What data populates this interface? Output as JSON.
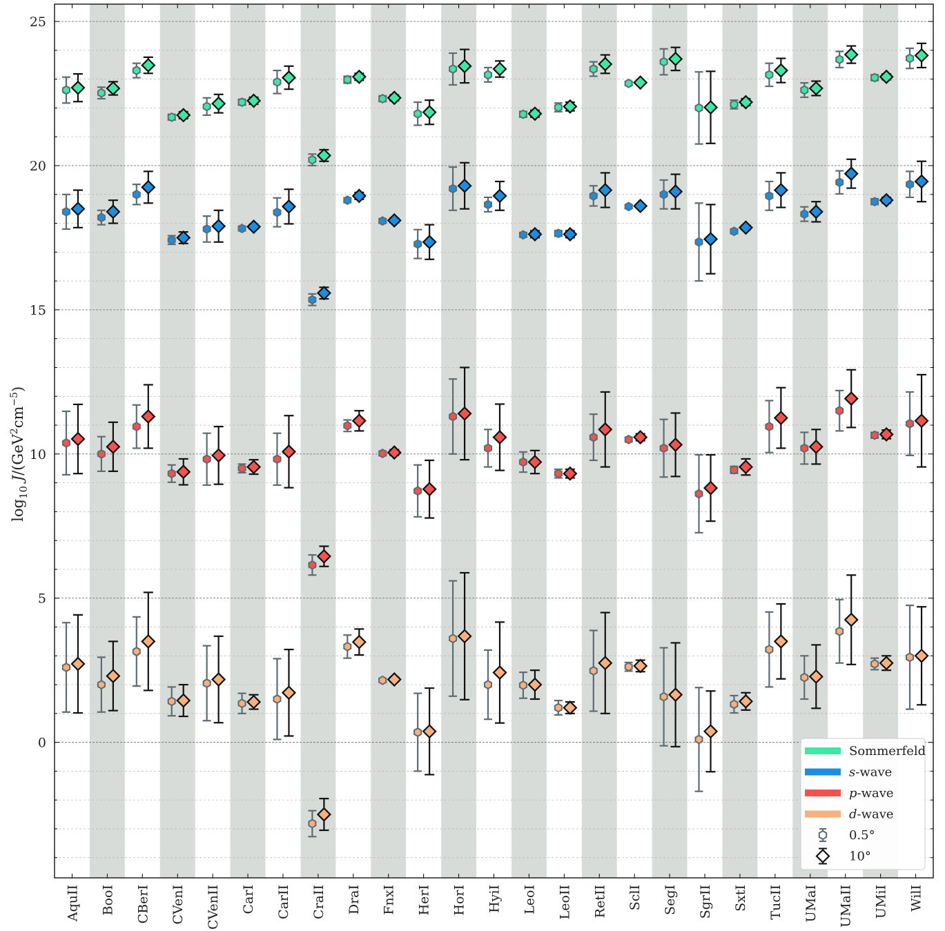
{
  "chart_data": {
    "type": "scatter",
    "ylabel": "log10 J/(GeV2cm−5)",
    "ylabel_parts": {
      "prefix": "log",
      "sub": "10",
      "var": "J",
      "mid": "/(GeV",
      "sup1": "2",
      "mid2": "cm",
      "sup2": "−5",
      "end": ")"
    },
    "ylim": [
      -4.7,
      25.6
    ],
    "yticks": [
      0,
      5,
      10,
      15,
      20,
      25
    ],
    "ytick_labels": [
      "0",
      "5",
      "10",
      "15",
      "20",
      "25"
    ],
    "grid": "horizontal dashed, major and minor",
    "alternating_bands": true,
    "categories": [
      "AquII",
      "BooI",
      "CBerI",
      "CVenI",
      "CVenII",
      "CarI",
      "CarII",
      "CraII",
      "DraI",
      "FnxI",
      "HerI",
      "HorI",
      "HyiI",
      "LeoI",
      "LeoII",
      "RetII",
      "SclI",
      "SegI",
      "SgrII",
      "SxtI",
      "TucII",
      "UMaI",
      "UMaII",
      "UMiI",
      "WilI"
    ],
    "series": [
      {
        "name": "Sommerfeld",
        "color": "#3de8a6",
        "small": [
          [
            22.62,
            0.45
          ],
          [
            22.52,
            0.2
          ],
          [
            23.3,
            0.25
          ],
          [
            21.68,
            0.1
          ],
          [
            22.05,
            0.3
          ],
          [
            22.2,
            0.1
          ],
          [
            22.9,
            0.4
          ],
          [
            20.2,
            0.2
          ],
          [
            22.98,
            0.12
          ],
          [
            22.32,
            0.1
          ],
          [
            21.8,
            0.4
          ],
          [
            23.35,
            0.55
          ],
          [
            23.15,
            0.25
          ],
          [
            21.78,
            0.1
          ],
          [
            22.02,
            0.15
          ],
          [
            23.35,
            0.25
          ],
          [
            22.85,
            0.06
          ],
          [
            23.6,
            0.45
          ],
          [
            22.0,
            1.25
          ],
          [
            22.12,
            0.15
          ],
          [
            23.15,
            0.4
          ],
          [
            22.62,
            0.25
          ],
          [
            23.68,
            0.28
          ],
          [
            23.05,
            0.1
          ],
          [
            23.72,
            0.35
          ]
        ],
        "large": [
          [
            22.7,
            0.48
          ],
          [
            22.68,
            0.23
          ],
          [
            23.48,
            0.28
          ],
          [
            21.75,
            0.12
          ],
          [
            22.15,
            0.32
          ],
          [
            22.25,
            0.12
          ],
          [
            23.05,
            0.4
          ],
          [
            20.35,
            0.2
          ],
          [
            23.08,
            0.12
          ],
          [
            22.35,
            0.1
          ],
          [
            21.85,
            0.42
          ],
          [
            23.45,
            0.58
          ],
          [
            23.35,
            0.28
          ],
          [
            21.8,
            0.12
          ],
          [
            22.05,
            0.15
          ],
          [
            23.52,
            0.32
          ],
          [
            22.88,
            0.06
          ],
          [
            23.7,
            0.4
          ],
          [
            22.02,
            1.25
          ],
          [
            22.2,
            0.12
          ],
          [
            23.3,
            0.42
          ],
          [
            22.68,
            0.25
          ],
          [
            23.85,
            0.3
          ],
          [
            23.08,
            0.1
          ],
          [
            23.82,
            0.42
          ]
        ]
      },
      {
        "name": "s-wave",
        "color": "#1a8ee0",
        "small": [
          [
            18.4,
            0.6
          ],
          [
            18.2,
            0.25
          ],
          [
            19.0,
            0.35
          ],
          [
            17.42,
            0.15
          ],
          [
            17.8,
            0.45
          ],
          [
            17.82,
            0.08
          ],
          [
            18.38,
            0.5
          ],
          [
            15.35,
            0.2
          ],
          [
            18.8,
            0.08
          ],
          [
            18.08,
            0.08
          ],
          [
            17.28,
            0.5
          ],
          [
            19.2,
            0.75
          ],
          [
            18.65,
            0.25
          ],
          [
            17.6,
            0.08
          ],
          [
            17.65,
            0.1
          ],
          [
            18.95,
            0.35
          ],
          [
            18.58,
            0.06
          ],
          [
            19.0,
            0.5
          ],
          [
            17.35,
            1.35
          ],
          [
            17.72,
            0.08
          ],
          [
            18.95,
            0.5
          ],
          [
            18.32,
            0.25
          ],
          [
            19.42,
            0.4
          ],
          [
            18.75,
            0.1
          ],
          [
            19.35,
            0.45
          ]
        ],
        "large": [
          [
            18.5,
            0.65
          ],
          [
            18.4,
            0.4
          ],
          [
            19.25,
            0.55
          ],
          [
            17.5,
            0.2
          ],
          [
            17.9,
            0.55
          ],
          [
            17.88,
            0.08
          ],
          [
            18.58,
            0.6
          ],
          [
            15.58,
            0.2
          ],
          [
            18.95,
            0.12
          ],
          [
            18.1,
            0.08
          ],
          [
            17.35,
            0.6
          ],
          [
            19.3,
            0.8
          ],
          [
            18.95,
            0.5
          ],
          [
            17.62,
            0.12
          ],
          [
            17.62,
            0.12
          ],
          [
            19.15,
            0.6
          ],
          [
            18.6,
            0.06
          ],
          [
            19.1,
            0.6
          ],
          [
            17.45,
            1.2
          ],
          [
            17.85,
            0.08
          ],
          [
            19.15,
            0.6
          ],
          [
            18.4,
            0.35
          ],
          [
            19.72,
            0.5
          ],
          [
            18.8,
            0.1
          ],
          [
            19.45,
            0.7
          ]
        ]
      },
      {
        "name": "p-wave",
        "color": "#f5524f",
        "small": [
          [
            10.38,
            1.1
          ],
          [
            10.0,
            0.6
          ],
          [
            10.95,
            0.75
          ],
          [
            9.32,
            0.3
          ],
          [
            9.82,
            0.9
          ],
          [
            9.5,
            0.15
          ],
          [
            9.82,
            0.9
          ],
          [
            6.15,
            0.35
          ],
          [
            10.98,
            0.2
          ],
          [
            10.02,
            0.08
          ],
          [
            8.72,
            0.9
          ],
          [
            11.3,
            1.3
          ],
          [
            10.2,
            0.65
          ],
          [
            9.72,
            0.35
          ],
          [
            9.32,
            0.15
          ],
          [
            10.58,
            0.8
          ],
          [
            10.5,
            0.08
          ],
          [
            10.2,
            1.0
          ],
          [
            8.62,
            1.35
          ],
          [
            9.45,
            0.12
          ],
          [
            10.95,
            0.9
          ],
          [
            10.2,
            0.55
          ],
          [
            11.5,
            0.7
          ],
          [
            10.65,
            0.1
          ],
          [
            11.05,
            1.1
          ]
        ],
        "large": [
          [
            10.52,
            1.2
          ],
          [
            10.25,
            0.85
          ],
          [
            11.3,
            1.1
          ],
          [
            9.38,
            0.45
          ],
          [
            9.95,
            1.0
          ],
          [
            9.55,
            0.25
          ],
          [
            10.08,
            1.25
          ],
          [
            6.45,
            0.35
          ],
          [
            11.15,
            0.35
          ],
          [
            10.05,
            0.1
          ],
          [
            8.78,
            1.0
          ],
          [
            11.4,
            1.6
          ],
          [
            10.58,
            1.15
          ],
          [
            9.72,
            0.4
          ],
          [
            9.32,
            0.15
          ],
          [
            10.85,
            1.3
          ],
          [
            10.58,
            0.12
          ],
          [
            10.32,
            1.1
          ],
          [
            8.82,
            1.15
          ],
          [
            9.55,
            0.28
          ],
          [
            11.25,
            1.05
          ],
          [
            10.25,
            0.6
          ],
          [
            11.92,
            1.0
          ],
          [
            10.68,
            0.15
          ],
          [
            11.15,
            1.6
          ]
        ]
      },
      {
        "name": "d-wave",
        "color": "#f9b07c",
        "small": [
          [
            2.6,
            1.55
          ],
          [
            2.0,
            0.95
          ],
          [
            3.15,
            1.2
          ],
          [
            1.42,
            0.5
          ],
          [
            2.05,
            1.3
          ],
          [
            1.35,
            0.35
          ],
          [
            1.5,
            1.4
          ],
          [
            -2.82,
            0.45
          ],
          [
            3.32,
            0.4
          ],
          [
            2.15,
            0.06
          ],
          [
            0.35,
            1.35
          ],
          [
            3.6,
            2.0
          ],
          [
            2.0,
            1.2
          ],
          [
            1.98,
            0.45
          ],
          [
            1.2,
            0.25
          ],
          [
            2.48,
            1.4
          ],
          [
            2.62,
            0.15
          ],
          [
            1.58,
            1.7
          ],
          [
            0.1,
            1.8
          ],
          [
            1.32,
            0.3
          ],
          [
            3.22,
            1.3
          ],
          [
            2.25,
            0.75
          ],
          [
            3.85,
            1.1
          ],
          [
            2.72,
            0.2
          ],
          [
            2.95,
            1.8
          ]
        ],
        "large": [
          [
            2.72,
            1.7
          ],
          [
            2.3,
            1.2
          ],
          [
            3.5,
            1.7
          ],
          [
            1.45,
            0.55
          ],
          [
            2.18,
            1.5
          ],
          [
            1.4,
            0.25
          ],
          [
            1.72,
            1.5
          ],
          [
            -2.5,
            0.55
          ],
          [
            3.48,
            0.45
          ],
          [
            2.18,
            0.08
          ],
          [
            0.38,
            1.5
          ],
          [
            3.68,
            2.2
          ],
          [
            2.42,
            1.75
          ],
          [
            2.0,
            0.5
          ],
          [
            1.2,
            0.2
          ],
          [
            2.75,
            1.75
          ],
          [
            2.65,
            0.2
          ],
          [
            1.65,
            1.8
          ],
          [
            0.38,
            1.4
          ],
          [
            1.42,
            0.3
          ],
          [
            3.5,
            1.3
          ],
          [
            2.28,
            1.1
          ],
          [
            4.25,
            1.55
          ],
          [
            2.75,
            0.25
          ],
          [
            3.0,
            1.7
          ]
        ]
      }
    ],
    "legend": {
      "position": "lower right",
      "entries": [
        {
          "label": "Sommerfeld",
          "kind": "line",
          "color": "#3de8a6"
        },
        {
          "label_italic": "s",
          "label_rest": "-wave",
          "kind": "line",
          "color": "#1a8ee0"
        },
        {
          "label_italic": "p",
          "label_rest": "-wave",
          "kind": "line",
          "color": "#f5524f"
        },
        {
          "label_italic": "d",
          "label_rest": "-wave",
          "kind": "line",
          "color": "#f9b07c"
        },
        {
          "label": "0.5°",
          "kind": "marker-small"
        },
        {
          "label": "10°",
          "kind": "marker-large"
        }
      ]
    },
    "style": {
      "band_color": "#d7dcd8",
      "small_err_color": "#5d6b73",
      "large_err_color": "#111111",
      "grid_color": "#9a9a9a"
    }
  }
}
